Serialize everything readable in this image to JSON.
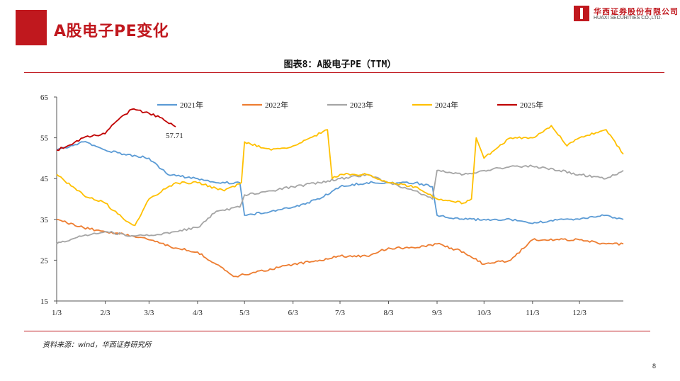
{
  "header": {
    "title": "A股电子PE变化",
    "logo_cn": "华西证券股份有限公司",
    "logo_en": "HUAXI SECURITIES CO.,LTD."
  },
  "chart_title": "图表8：A股电子PE（TTM）",
  "source": "资料来源：wind，华西证券研究所",
  "page_number": "8",
  "chart_data": {
    "type": "line",
    "title": "图表8：A股电子PE（TTM）",
    "xlabel": "",
    "ylabel": "",
    "x_ticks": [
      "1/3",
      "2/3",
      "3/3",
      "4/3",
      "5/3",
      "6/3",
      "7/3",
      "8/3",
      "9/3",
      "10/3",
      "11/3",
      "12/3"
    ],
    "y_ticks": [
      15,
      25,
      35,
      45,
      55,
      65
    ],
    "ylim": [
      15,
      65
    ],
    "grid": false,
    "legend": "top",
    "annotation": {
      "text": "57.71",
      "series": "2025年",
      "x": "3/20",
      "y": 57.71
    },
    "series": [
      {
        "name": "2021年",
        "color": "#5b9bd5",
        "points": [
          [
            "1/3",
            52
          ],
          [
            "1/20",
            54
          ],
          [
            "2/3",
            52
          ],
          [
            "2/15",
            51
          ],
          [
            "3/3",
            50
          ],
          [
            "3/15",
            46
          ],
          [
            "4/3",
            45
          ],
          [
            "4/15",
            44
          ],
          [
            "4/30",
            44
          ],
          [
            "5/3",
            36
          ],
          [
            "5/20",
            37
          ],
          [
            "6/3",
            38
          ],
          [
            "6/20",
            40
          ],
          [
            "7/3",
            43
          ],
          [
            "7/20",
            44
          ],
          [
            "8/3",
            44
          ],
          [
            "8/20",
            44
          ],
          [
            "8/31",
            43
          ],
          [
            "9/3",
            36
          ],
          [
            "9/20",
            35
          ],
          [
            "10/3",
            35
          ],
          [
            "10/20",
            35
          ],
          [
            "11/3",
            34
          ],
          [
            "11/20",
            35
          ],
          [
            "12/3",
            35
          ],
          [
            "12/20",
            36
          ],
          [
            "12/31",
            35
          ]
        ]
      },
      {
        "name": "2022年",
        "color": "#ed7d31",
        "points": [
          [
            "1/3",
            35
          ],
          [
            "1/20",
            33
          ],
          [
            "2/3",
            32
          ],
          [
            "2/20",
            31
          ],
          [
            "3/3",
            30
          ],
          [
            "3/20",
            28
          ],
          [
            "4/3",
            27
          ],
          [
            "4/15",
            24
          ],
          [
            "4/26",
            21
          ],
          [
            "5/10",
            22
          ],
          [
            "6/3",
            24
          ],
          [
            "6/20",
            25
          ],
          [
            "7/3",
            26
          ],
          [
            "7/20",
            26
          ],
          [
            "8/3",
            28
          ],
          [
            "8/20",
            28
          ],
          [
            "9/3",
            29
          ],
          [
            "9/20",
            27
          ],
          [
            "10/3",
            24
          ],
          [
            "10/20",
            25
          ],
          [
            "11/3",
            30
          ],
          [
            "11/20",
            30
          ],
          [
            "12/3",
            30
          ],
          [
            "12/20",
            29
          ],
          [
            "12/31",
            29
          ]
        ]
      },
      {
        "name": "2023年",
        "color": "#a5a5a5",
        "points": [
          [
            "1/3",
            29
          ],
          [
            "1/20",
            31
          ],
          [
            "2/3",
            32
          ],
          [
            "2/20",
            31
          ],
          [
            "3/3",
            31
          ],
          [
            "3/20",
            32
          ],
          [
            "4/3",
            33
          ],
          [
            "4/15",
            37
          ],
          [
            "4/30",
            38
          ],
          [
            "5/3",
            41
          ],
          [
            "5/20",
            42
          ],
          [
            "6/3",
            43
          ],
          [
            "6/20",
            44
          ],
          [
            "7/3",
            45
          ],
          [
            "7/20",
            46
          ],
          [
            "8/3",
            44
          ],
          [
            "8/20",
            42
          ],
          [
            "8/31",
            40
          ],
          [
            "9/3",
            47
          ],
          [
            "9/20",
            46
          ],
          [
            "10/3",
            47
          ],
          [
            "10/20",
            48
          ],
          [
            "11/3",
            48
          ],
          [
            "11/20",
            47
          ],
          [
            "12/3",
            46
          ],
          [
            "12/20",
            45
          ],
          [
            "12/31",
            47
          ]
        ]
      },
      {
        "name": "2024年",
        "color": "#ffc000",
        "points": [
          [
            "1/3",
            46
          ],
          [
            "1/20",
            41
          ],
          [
            "2/3",
            39
          ],
          [
            "2/15",
            35
          ],
          [
            "2/22",
            33.5
          ],
          [
            "3/3",
            40
          ],
          [
            "3/20",
            44
          ],
          [
            "4/3",
            44
          ],
          [
            "4/20",
            42
          ],
          [
            "5/1",
            44
          ],
          [
            "5/3",
            54
          ],
          [
            "5/20",
            52
          ],
          [
            "6/3",
            53
          ],
          [
            "6/25",
            57
          ],
          [
            "6/28",
            45
          ],
          [
            "7/3",
            46
          ],
          [
            "7/20",
            46
          ],
          [
            "8/3",
            44
          ],
          [
            "8/20",
            43
          ],
          [
            "9/3",
            40
          ],
          [
            "9/20",
            39
          ],
          [
            "9/25",
            40
          ],
          [
            "9/28",
            55
          ],
          [
            "10/3",
            50
          ],
          [
            "10/20",
            55
          ],
          [
            "11/3",
            55
          ],
          [
            "11/15",
            58
          ],
          [
            "11/25",
            53
          ],
          [
            "12/3",
            55
          ],
          [
            "12/20",
            57
          ],
          [
            "12/31",
            51
          ]
        ]
      },
      {
        "name": "2025年",
        "color": "#c00000",
        "points": [
          [
            "1/3",
            52
          ],
          [
            "1/10",
            53
          ],
          [
            "1/20",
            55
          ],
          [
            "2/3",
            56
          ],
          [
            "2/10",
            59
          ],
          [
            "2/20",
            62
          ],
          [
            "3/3",
            61
          ],
          [
            "3/10",
            60
          ],
          [
            "3/20",
            57.71
          ]
        ]
      }
    ]
  }
}
